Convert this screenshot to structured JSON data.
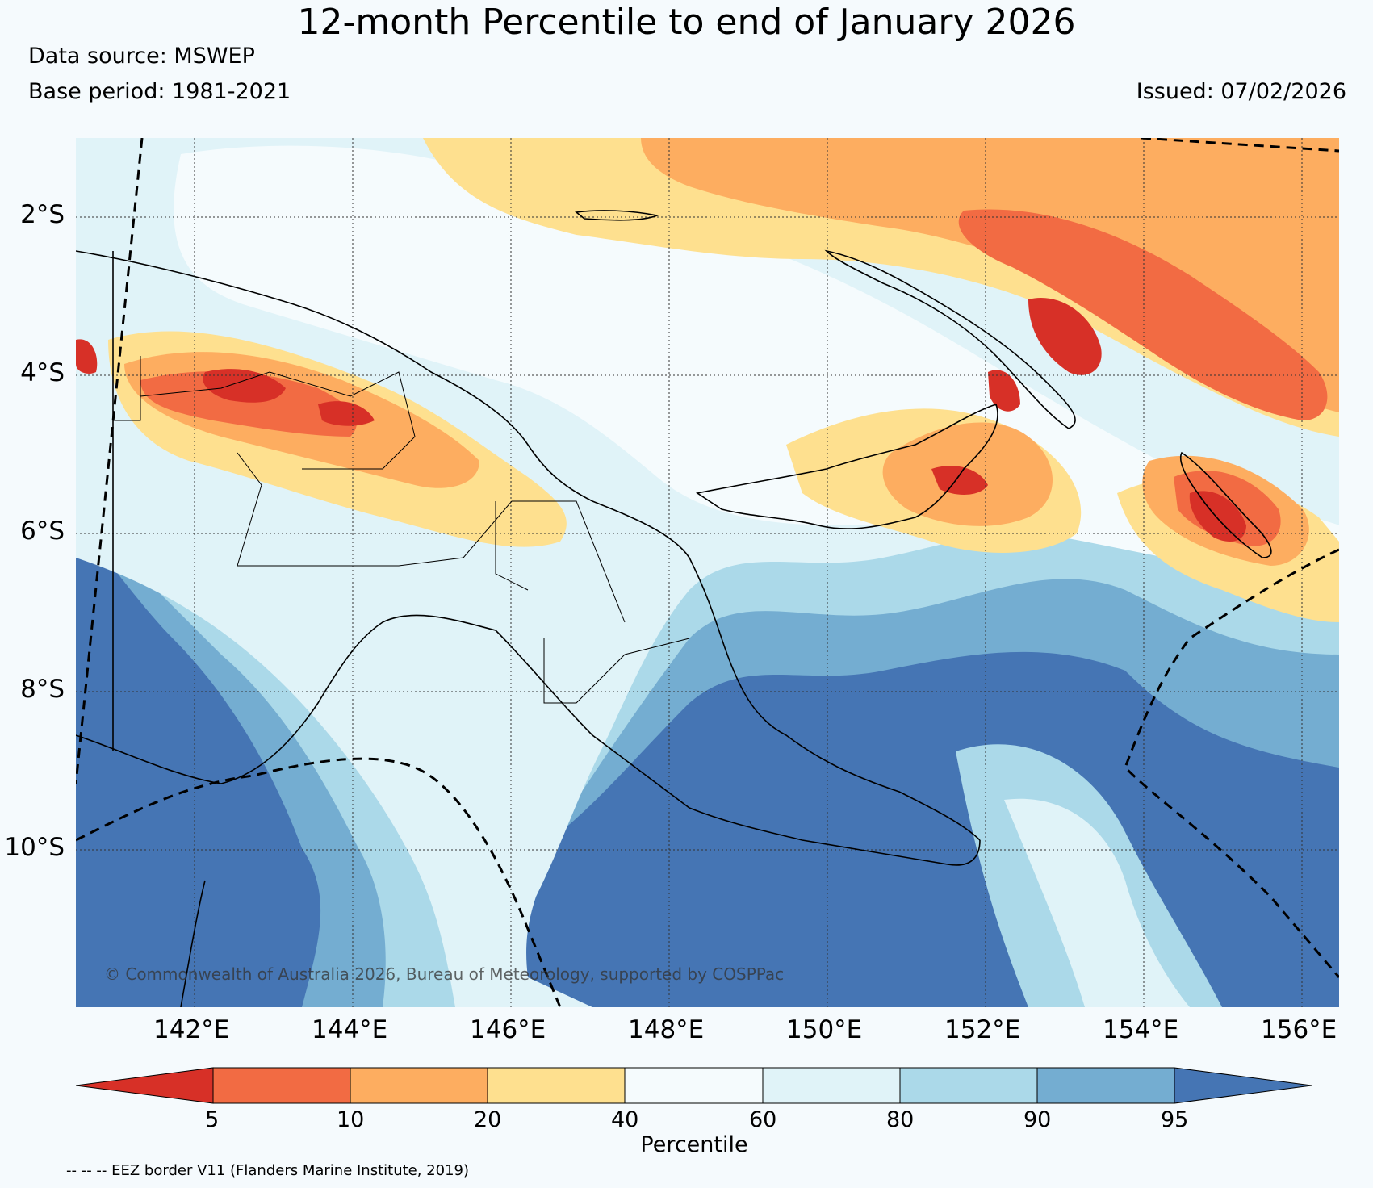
{
  "title": "12-month Percentile to end of January 2026",
  "data_source": "Data source: MSWEP",
  "base_period": "Base period: 1981-2021",
  "issued": "Issued: 07/02/2026",
  "copyright": "© Commonwealth of Australia 2026, Bureau of Meteorology, supported by COSPPac",
  "lat_labels": [
    "2°S",
    "4°S",
    "6°S",
    "8°S",
    "10°S"
  ],
  "lon_labels": [
    "142°E",
    "144°E",
    "146°E",
    "148°E",
    "150°E",
    "152°E",
    "154°E",
    "156°E"
  ],
  "colorbar": {
    "label": "Percentile",
    "ticks": [
      "5",
      "10",
      "20",
      "40",
      "60",
      "80",
      "90",
      "95"
    ],
    "colors": [
      "#d73027",
      "#f26b43",
      "#fdad60",
      "#fee08f",
      "#f5fbfd",
      "#e0f3f8",
      "#abd9e9",
      "#74add1",
      "#4575b4"
    ]
  },
  "eez_note": "-- -- -- EEZ border V11 (Flanders Marine Institute, 2019)"
}
